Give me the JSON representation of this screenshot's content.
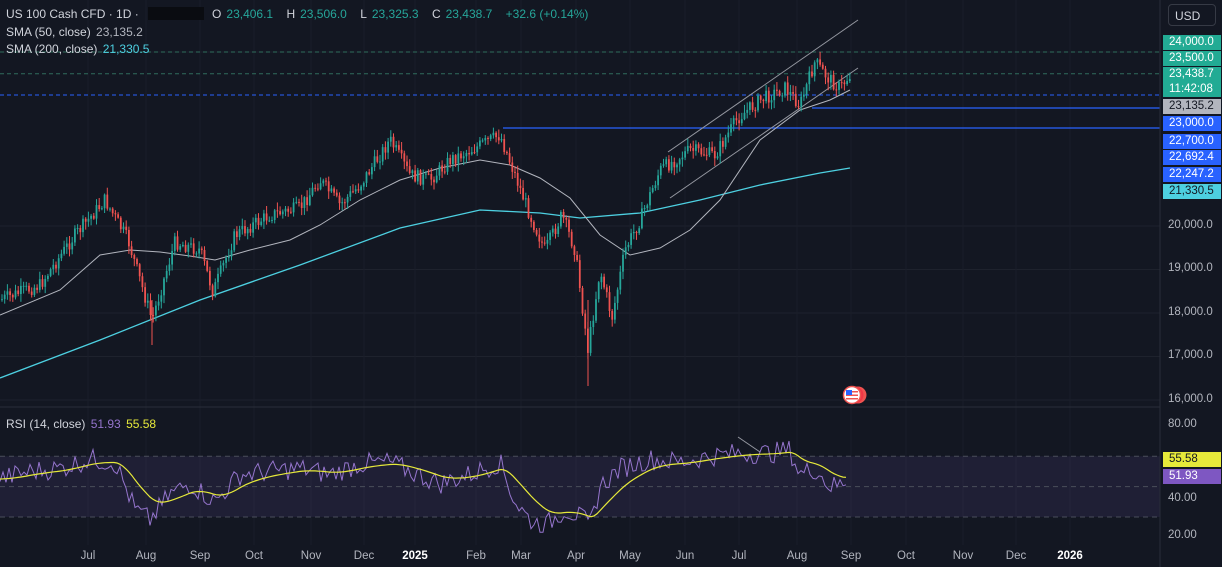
{
  "header": {
    "symbol": "US 100 Cash CFD · 1D ·",
    "open_label": "O",
    "open": "23,406.1",
    "high_label": "H",
    "high": "23,506.0",
    "low_label": "L",
    "low": "23,325.3",
    "close_label": "C",
    "close": "23,438.7",
    "change": "+32.6 (+0.14%)"
  },
  "indicators": {
    "sma50_label": "SMA (50, close)",
    "sma50_value": "23,135.2",
    "sma200_label": "SMA (200, close)",
    "sma200_value": "21,330.5",
    "rsi_label": "RSI (14, close)",
    "rsi_value": "51.93",
    "rsi_ma_value": "55.58"
  },
  "currency": "USD",
  "price_axis": {
    "ticks": [
      "24,000.0",
      "23,500.0",
      "20,000.0",
      "19,000.0",
      "18,000.0",
      "17,000.0",
      "16,000.0"
    ],
    "tags": {
      "t24000": "24,000.0",
      "t23500": "23,500.0",
      "last_price": "23,438.7",
      "countdown": "11:42:08",
      "sma50": "23,135.2",
      "t23000": "23,000.0",
      "t22700": "22,700.0",
      "t22692": "22,692.4",
      "t22247": "22,247.2",
      "sma200": "21,330.5"
    }
  },
  "rsi_axis": {
    "ticks": [
      "80.00",
      "40.00",
      "20.00"
    ],
    "ma_tag": "55.58",
    "rsi_tag": "51.93"
  },
  "time_axis": [
    "Jul",
    "Aug",
    "Sep",
    "Oct",
    "Nov",
    "Dec",
    "2025",
    "Feb",
    "Mar",
    "Apr",
    "May",
    "Jun",
    "Jul",
    "Aug",
    "Sep",
    "Oct",
    "Nov",
    "Dec",
    "2026"
  ],
  "colors": {
    "background": "#131722",
    "up": "#26a69a",
    "down": "#ef5350",
    "sma50": "#b2b5be",
    "sma200": "#4dd0e1",
    "rsi": "#9575cd",
    "rsi_ma": "#e6e93a",
    "level_line": "#2962ff"
  },
  "chart_data": {
    "type": "candlestick",
    "title": "US 100 Cash CFD · 1D",
    "period": "Jul 2024 – Sep 2025",
    "ylim": [
      16000,
      24200
    ],
    "monthly_closes": {
      "categories": [
        "Jul",
        "Aug",
        "Sep",
        "Oct",
        "Nov",
        "Dec",
        "Jan",
        "Feb",
        "Mar",
        "Apr",
        "May",
        "Jun",
        "Jul",
        "Aug",
        "Sep"
      ],
      "values": [
        19400,
        19550,
        20050,
        20100,
        20800,
        21500,
        21500,
        20900,
        19300,
        18900,
        21400,
        22700,
        23200,
        23400,
        23439
      ]
    },
    "horizontal_levels": [
      23000,
      22700
    ],
    "last_values": {
      "close": 23438.7,
      "sma50": 23135.2,
      "sma200": 21330.5,
      "rsi": 51.93,
      "rsi_ma": 55.58
    }
  }
}
